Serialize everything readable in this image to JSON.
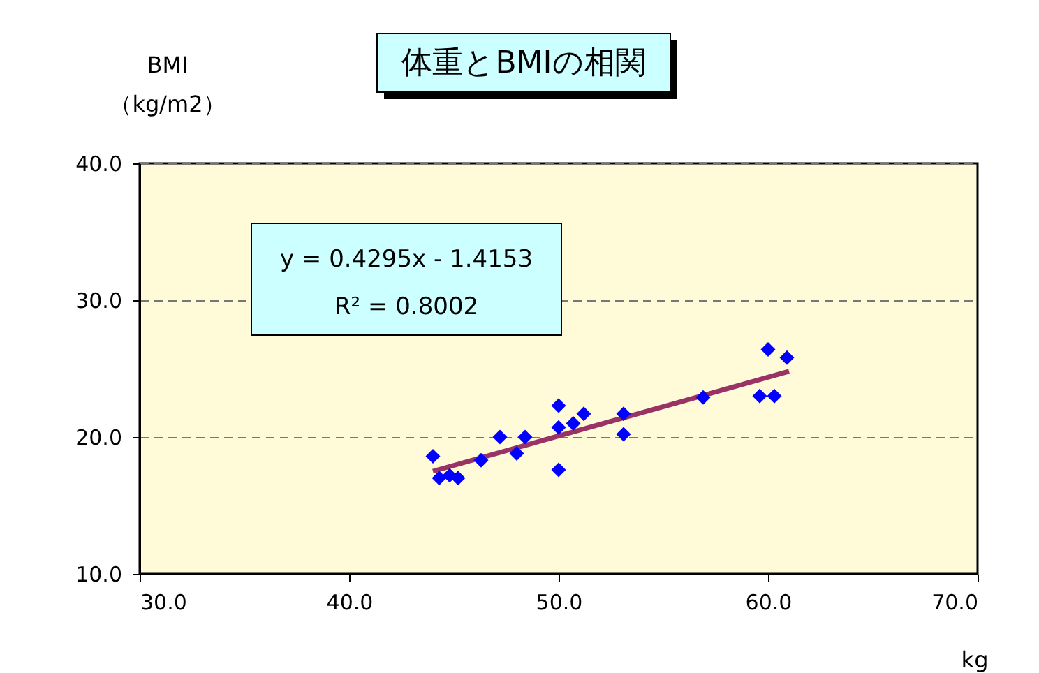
{
  "chart_data": {
    "type": "scatter",
    "title": "体重とBMIの相関",
    "xlabel": "kg",
    "ylabel": "BMI\n（kg/m2）",
    "annotations": [
      "y = 0.4295x - 1.4153",
      "R² = 0.8002"
    ],
    "series": [
      {
        "color": "#0000ff",
        "marker": "diamond",
        "x": [
          44.0,
          44.3,
          44.8,
          45.2,
          46.3,
          47.2,
          48.0,
          48.4,
          50.0,
          50.0,
          50.0,
          50.7,
          51.2,
          53.1,
          53.1,
          56.9,
          59.6,
          60.3,
          60.0,
          60.9
        ],
        "values": [
          18.6,
          17.0,
          17.2,
          17.0,
          18.3,
          20.0,
          18.8,
          20.0,
          22.3,
          20.7,
          17.6,
          21.0,
          21.7,
          21.7,
          20.2,
          22.9,
          23.0,
          23.0,
          26.4,
          25.8
        ]
      },
      {
        "type": "line",
        "color": "#993366",
        "marker": "none",
        "x": [
          44.0,
          61.0
        ],
        "values": [
          17.5,
          24.8
        ]
      }
    ],
    "xlim": [
      30,
      70
    ],
    "ylim": [
      10,
      40
    ],
    "xticks": [
      {
        "value": 30,
        "label": "30.0"
      },
      {
        "value": 40,
        "label": "40.0"
      },
      {
        "value": 50,
        "label": "50.0"
      },
      {
        "value": 60,
        "label": "60.0"
      },
      {
        "value": 70,
        "label": "70.0"
      }
    ],
    "yticks": [
      {
        "value": 10,
        "label": "10.0"
      },
      {
        "value": 20,
        "label": "20.0"
      },
      {
        "value": 30,
        "label": "30.0"
      },
      {
        "value": 40,
        "label": "40.0"
      }
    ],
    "grid": "y"
  }
}
